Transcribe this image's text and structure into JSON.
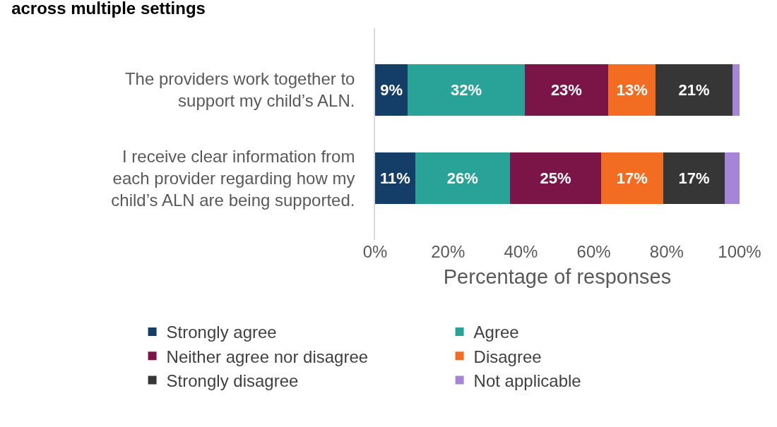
{
  "chart_data": {
    "type": "bar",
    "orientation": "horizontal",
    "stacked": true,
    "title": "across multiple settings",
    "categories": [
      "The providers work together to support my child’s ALN.",
      "I receive clear information from each provider regarding how my child’s ALN are being supported."
    ],
    "series": [
      {
        "name": "Strongly agree",
        "color": "#143d67",
        "values": [
          9,
          11
        ],
        "value_labels": [
          "9%",
          "11%"
        ]
      },
      {
        "name": "Agree",
        "color": "#29a398",
        "values": [
          32,
          26
        ],
        "value_labels": [
          "32%",
          "26%"
        ]
      },
      {
        "name": "Neither agree nor disagree",
        "color": "#7b1548",
        "values": [
          23,
          25
        ],
        "value_labels": [
          "23%",
          "25%"
        ]
      },
      {
        "name": "Disagree",
        "color": "#f26d21",
        "values": [
          13,
          17
        ],
        "value_labels": [
          "13%",
          "17%"
        ]
      },
      {
        "name": "Strongly disagree",
        "color": "#363636",
        "values": [
          21,
          17
        ],
        "value_labels": [
          "21%",
          "17%"
        ]
      },
      {
        "name": "Not applicable",
        "color": "#a585d6",
        "values": [
          2,
          4
        ],
        "value_labels": [
          null,
          null
        ]
      }
    ],
    "xlabel": "Percentage of responses",
    "xlim": [
      0,
      100
    ],
    "xticks": [
      {
        "value": 0,
        "label": "0%"
      },
      {
        "value": 20,
        "label": "20%"
      },
      {
        "value": 40,
        "label": "40%"
      },
      {
        "value": 60,
        "label": "60%"
      },
      {
        "value": 80,
        "label": "80%"
      },
      {
        "value": 100,
        "label": "100%"
      }
    ],
    "legend": "bottom"
  }
}
